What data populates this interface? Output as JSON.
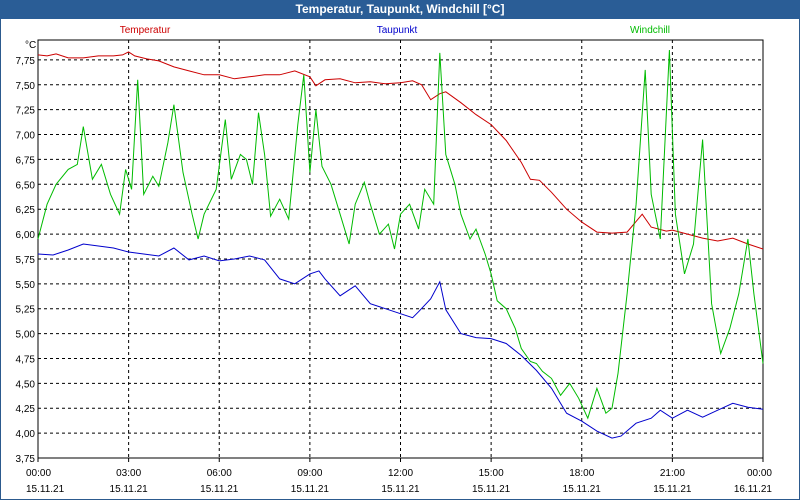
{
  "window": {
    "title": "Temperatur, Taupunkt, Windchill [°C]"
  },
  "chart_data": {
    "type": "line",
    "title": "Temperatur, Taupunkt, Windchill [°C]",
    "ylabel": "°C",
    "ylim": [
      3.75,
      7.95
    ],
    "yticks": [
      "3,75",
      "4,00",
      "4,25",
      "4,50",
      "4,75",
      "5,00",
      "5,25",
      "5,50",
      "5,75",
      "6,00",
      "6,25",
      "6,50",
      "6,75",
      "7,00",
      "7,25",
      "7,50",
      "7,75"
    ],
    "xticks": [
      {
        "time": "00:00",
        "date": "15.11.21"
      },
      {
        "time": "03:00",
        "date": "15.11.21"
      },
      {
        "time": "06:00",
        "date": "15.11.21"
      },
      {
        "time": "09:00",
        "date": "15.11.21"
      },
      {
        "time": "12:00",
        "date": "15.11.21"
      },
      {
        "time": "15:00",
        "date": "15.11.21"
      },
      {
        "time": "18:00",
        "date": "15.11.21"
      },
      {
        "time": "21:00",
        "date": "15.11.21"
      },
      {
        "time": "00:00",
        "date": "16.11.21"
      }
    ],
    "xlim_hours": [
      0,
      24
    ],
    "grid": true,
    "series": [
      {
        "name": "Temperatur",
        "color": "#cc0000",
        "points": [
          [
            0,
            7.8
          ],
          [
            0.3,
            7.79
          ],
          [
            0.6,
            7.81
          ],
          [
            1.0,
            7.77
          ],
          [
            1.5,
            7.77
          ],
          [
            2.0,
            7.79
          ],
          [
            2.5,
            7.79
          ],
          [
            2.8,
            7.8
          ],
          [
            3.0,
            7.83
          ],
          [
            3.2,
            7.79
          ],
          [
            3.6,
            7.76
          ],
          [
            4.0,
            7.74
          ],
          [
            4.5,
            7.68
          ],
          [
            5.0,
            7.64
          ],
          [
            5.5,
            7.6
          ],
          [
            6.0,
            7.6
          ],
          [
            6.5,
            7.56
          ],
          [
            7.0,
            7.58
          ],
          [
            7.5,
            7.6
          ],
          [
            8.0,
            7.6
          ],
          [
            8.5,
            7.64
          ],
          [
            9.0,
            7.58
          ],
          [
            9.2,
            7.49
          ],
          [
            9.5,
            7.55
          ],
          [
            10.0,
            7.56
          ],
          [
            10.5,
            7.52
          ],
          [
            11.0,
            7.53
          ],
          [
            11.5,
            7.51
          ],
          [
            12.0,
            7.52
          ],
          [
            12.4,
            7.54
          ],
          [
            12.7,
            7.5
          ],
          [
            13.0,
            7.35
          ],
          [
            13.3,
            7.41
          ],
          [
            13.5,
            7.43
          ],
          [
            14.0,
            7.32
          ],
          [
            14.5,
            7.2
          ],
          [
            15.0,
            7.1
          ],
          [
            15.5,
            6.94
          ],
          [
            16.0,
            6.72
          ],
          [
            16.3,
            6.55
          ],
          [
            16.6,
            6.54
          ],
          [
            17.0,
            6.42
          ],
          [
            17.5,
            6.25
          ],
          [
            18.0,
            6.12
          ],
          [
            18.5,
            6.02
          ],
          [
            19.0,
            6.01
          ],
          [
            19.5,
            6.02
          ],
          [
            20.0,
            6.2
          ],
          [
            20.3,
            6.07
          ],
          [
            20.8,
            6.03
          ],
          [
            21.0,
            6.04
          ],
          [
            21.5,
            6.0
          ],
          [
            22.0,
            5.96
          ],
          [
            22.5,
            5.93
          ],
          [
            23.0,
            5.96
          ],
          [
            23.5,
            5.9
          ],
          [
            24.0,
            5.85
          ]
        ]
      },
      {
        "name": "Taupunkt",
        "color": "#0000cc",
        "points": [
          [
            0,
            5.8
          ],
          [
            0.5,
            5.79
          ],
          [
            1.0,
            5.84
          ],
          [
            1.5,
            5.9
          ],
          [
            2.0,
            5.88
          ],
          [
            2.5,
            5.86
          ],
          [
            3.0,
            5.82
          ],
          [
            3.5,
            5.8
          ],
          [
            4.0,
            5.78
          ],
          [
            4.5,
            5.86
          ],
          [
            5.0,
            5.74
          ],
          [
            5.5,
            5.78
          ],
          [
            6.0,
            5.73
          ],
          [
            6.5,
            5.75
          ],
          [
            7.0,
            5.78
          ],
          [
            7.5,
            5.74
          ],
          [
            8.0,
            5.55
          ],
          [
            8.5,
            5.5
          ],
          [
            9.0,
            5.6
          ],
          [
            9.3,
            5.63
          ],
          [
            9.5,
            5.55
          ],
          [
            10.0,
            5.38
          ],
          [
            10.5,
            5.48
          ],
          [
            11.0,
            5.3
          ],
          [
            11.5,
            5.25
          ],
          [
            12.0,
            5.2
          ],
          [
            12.4,
            5.16
          ],
          [
            12.6,
            5.22
          ],
          [
            13.0,
            5.35
          ],
          [
            13.3,
            5.52
          ],
          [
            13.5,
            5.24
          ],
          [
            14.0,
            5.0
          ],
          [
            14.5,
            4.96
          ],
          [
            15.0,
            4.95
          ],
          [
            15.5,
            4.9
          ],
          [
            16.0,
            4.78
          ],
          [
            16.5,
            4.63
          ],
          [
            17.0,
            4.45
          ],
          [
            17.5,
            4.2
          ],
          [
            18.0,
            4.12
          ],
          [
            18.5,
            4.02
          ],
          [
            19.0,
            3.95
          ],
          [
            19.3,
            3.97
          ],
          [
            19.8,
            4.1
          ],
          [
            20.3,
            4.15
          ],
          [
            20.6,
            4.23
          ],
          [
            21.0,
            4.15
          ],
          [
            21.5,
            4.23
          ],
          [
            22.0,
            4.16
          ],
          [
            22.5,
            4.23
          ],
          [
            23.0,
            4.3
          ],
          [
            23.5,
            4.26
          ],
          [
            24.0,
            4.24
          ]
        ]
      },
      {
        "name": "Windchill",
        "color": "#00bb00",
        "points": [
          [
            0,
            5.95
          ],
          [
            0.3,
            6.3
          ],
          [
            0.6,
            6.5
          ],
          [
            1.0,
            6.65
          ],
          [
            1.3,
            6.7
          ],
          [
            1.5,
            7.08
          ],
          [
            1.8,
            6.55
          ],
          [
            2.1,
            6.7
          ],
          [
            2.4,
            6.4
          ],
          [
            2.7,
            6.2
          ],
          [
            2.9,
            6.65
          ],
          [
            3.1,
            6.45
          ],
          [
            3.3,
            7.55
          ],
          [
            3.5,
            6.4
          ],
          [
            3.8,
            6.58
          ],
          [
            4.0,
            6.48
          ],
          [
            4.3,
            6.92
          ],
          [
            4.5,
            7.3
          ],
          [
            4.8,
            6.62
          ],
          [
            5.1,
            6.2
          ],
          [
            5.3,
            5.95
          ],
          [
            5.5,
            6.2
          ],
          [
            5.9,
            6.45
          ],
          [
            6.2,
            7.15
          ],
          [
            6.4,
            6.55
          ],
          [
            6.7,
            6.8
          ],
          [
            6.9,
            6.75
          ],
          [
            7.1,
            6.5
          ],
          [
            7.3,
            7.22
          ],
          [
            7.5,
            6.8
          ],
          [
            7.7,
            6.18
          ],
          [
            8.0,
            6.35
          ],
          [
            8.3,
            6.15
          ],
          [
            8.6,
            7.1
          ],
          [
            8.8,
            7.6
          ],
          [
            9.0,
            6.62
          ],
          [
            9.2,
            7.25
          ],
          [
            9.4,
            6.68
          ],
          [
            9.7,
            6.5
          ],
          [
            10.0,
            6.2
          ],
          [
            10.3,
            5.9
          ],
          [
            10.5,
            6.3
          ],
          [
            10.8,
            6.52
          ],
          [
            11.0,
            6.3
          ],
          [
            11.3,
            6.0
          ],
          [
            11.6,
            6.1
          ],
          [
            11.8,
            5.85
          ],
          [
            12.0,
            6.2
          ],
          [
            12.3,
            6.3
          ],
          [
            12.6,
            6.05
          ],
          [
            12.8,
            6.45
          ],
          [
            13.1,
            6.3
          ],
          [
            13.3,
            7.82
          ],
          [
            13.5,
            6.8
          ],
          [
            13.8,
            6.5
          ],
          [
            14.0,
            6.2
          ],
          [
            14.3,
            5.95
          ],
          [
            14.5,
            6.05
          ],
          [
            14.8,
            5.8
          ],
          [
            15.0,
            5.6
          ],
          [
            15.2,
            5.33
          ],
          [
            15.5,
            5.25
          ],
          [
            15.8,
            5.05
          ],
          [
            16.0,
            4.85
          ],
          [
            16.3,
            4.72
          ],
          [
            16.5,
            4.7
          ],
          [
            16.7,
            4.62
          ],
          [
            17.0,
            4.55
          ],
          [
            17.3,
            4.38
          ],
          [
            17.6,
            4.5
          ],
          [
            17.9,
            4.35
          ],
          [
            18.2,
            4.15
          ],
          [
            18.5,
            4.45
          ],
          [
            18.8,
            4.2
          ],
          [
            19.0,
            4.25
          ],
          [
            19.2,
            4.6
          ],
          [
            19.5,
            5.4
          ],
          [
            19.8,
            6.3
          ],
          [
            20.1,
            7.65
          ],
          [
            20.3,
            6.4
          ],
          [
            20.6,
            5.95
          ],
          [
            20.9,
            7.85
          ],
          [
            21.1,
            6.2
          ],
          [
            21.4,
            5.6
          ],
          [
            21.7,
            5.9
          ],
          [
            22.0,
            6.95
          ],
          [
            22.3,
            5.3
          ],
          [
            22.6,
            4.8
          ],
          [
            22.9,
            5.05
          ],
          [
            23.2,
            5.4
          ],
          [
            23.5,
            5.95
          ],
          [
            23.7,
            5.4
          ],
          [
            24.0,
            4.7
          ]
        ]
      }
    ]
  }
}
